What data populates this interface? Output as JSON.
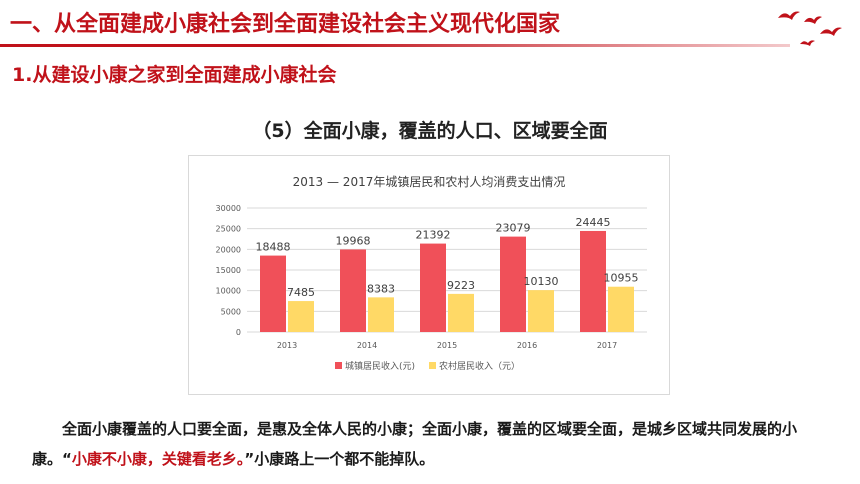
{
  "header": {
    "main_title": "一、从全面建成小康社会到全面建设社会主义现代化国家",
    "sub_title": "1.从建设小康之家到全面建成小康社会"
  },
  "section_heading": "（5）全面小康，覆盖的人口、区域要全面",
  "colors": {
    "accent": "#c0121a",
    "urban": "#f05059",
    "rural": "#ffd966"
  },
  "chart_data": {
    "type": "bar",
    "title": "2013 — 2017年城镇居民和农村人均消费支出情况",
    "categories": [
      "2013",
      "2014",
      "2015",
      "2016",
      "2017"
    ],
    "series": [
      {
        "name": "城镇居民收入(元)",
        "values": [
          18488,
          19968,
          21392,
          23079,
          24445
        ]
      },
      {
        "name": "农村居民收入（元）",
        "values": [
          7485,
          8383,
          9223,
          10130,
          10955
        ]
      }
    ],
    "ylim": [
      0,
      30000
    ],
    "yticks": [
      "0",
      "5000",
      "10000",
      "15000",
      "20000",
      "25000",
      "30000"
    ],
    "grid": true,
    "legend": "bottom"
  },
  "body": {
    "text_1": "全面小康覆盖的人口要全面，是惠及全体人民的小康；全面小康，覆盖的区域要全面，是城乡区域共同发展的小康。“",
    "highlight": "小康不小康，关键看老乡。",
    "text_2": "”小康路上一个都不能掉队。"
  }
}
